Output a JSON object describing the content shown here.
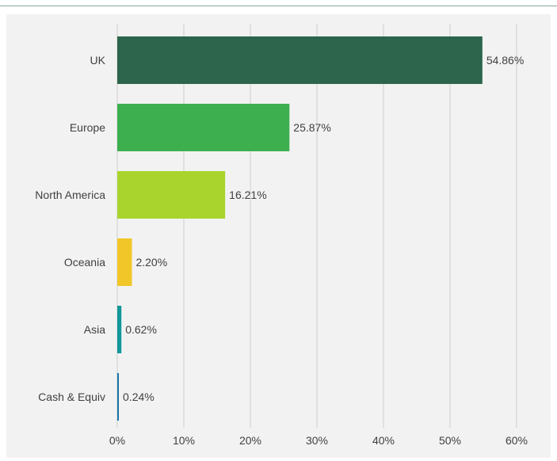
{
  "chart_data": {
    "type": "bar",
    "orientation": "horizontal",
    "title": "",
    "xlabel": "",
    "ylabel": "",
    "categories": [
      "UK",
      "Europe",
      "North America",
      "Oceania",
      "Asia",
      "Cash & Equiv"
    ],
    "values": [
      54.86,
      25.87,
      16.21,
      2.2,
      0.62,
      0.24
    ],
    "value_labels": [
      "54.86%",
      "25.87%",
      "16.21%",
      "2.20%",
      "0.62%",
      "0.24%"
    ],
    "colors": [
      "#2c654b",
      "#3daf4f",
      "#a8d42d",
      "#f1c628",
      "#12979b",
      "#1b74a8"
    ],
    "xlim": [
      0,
      60
    ],
    "x_ticks": [
      "0%",
      "10%",
      "20%",
      "30%",
      "40%",
      "50%",
      "60%"
    ],
    "grid": "vertical",
    "legend": "none"
  }
}
